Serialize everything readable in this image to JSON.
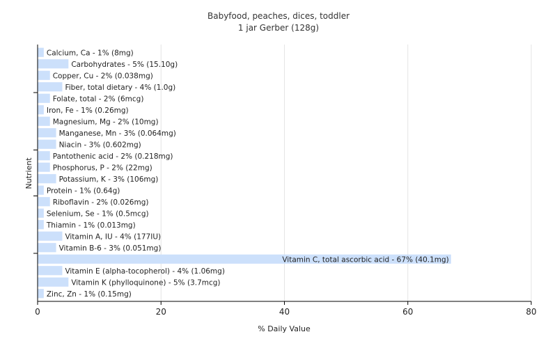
{
  "chart_data": {
    "type": "bar",
    "orientation": "horizontal",
    "title": "Babyfood, peaches, dices, toddler",
    "subtitle": "1 jar Gerber (128g)",
    "xlabel": "% Daily Value",
    "ylabel": "Nutrient",
    "xlim": [
      0,
      80
    ],
    "xticks": [
      0,
      20,
      40,
      60,
      80
    ],
    "grid": true,
    "bar_color": "#cce0fb",
    "categories": [
      "Calcium, Ca",
      "Carbohydrates",
      "Copper, Cu",
      "Fiber, total dietary",
      "Folate, total",
      "Iron, Fe",
      "Magnesium, Mg",
      "Manganese, Mn",
      "Niacin",
      "Pantothenic acid",
      "Phosphorus, P",
      "Potassium, K",
      "Protein",
      "Riboflavin",
      "Selenium, Se",
      "Thiamin",
      "Vitamin A, IU",
      "Vitamin B-6",
      "Vitamin C, total ascorbic acid",
      "Vitamin E (alpha-tocopherol)",
      "Vitamin K (phylloquinone)",
      "Zinc, Zn"
    ],
    "values": [
      1,
      5,
      2,
      4,
      2,
      1,
      2,
      3,
      3,
      2,
      2,
      3,
      1,
      2,
      1,
      1,
      4,
      3,
      67,
      4,
      5,
      1
    ],
    "labels": [
      "Calcium, Ca - 1% (8mg)",
      "Carbohydrates - 5% (15.10g)",
      "Copper, Cu - 2% (0.038mg)",
      "Fiber, total dietary - 4% (1.0g)",
      "Folate, total - 2% (6mcg)",
      "Iron, Fe - 1% (0.26mg)",
      "Magnesium, Mg - 2% (10mg)",
      "Manganese, Mn - 3% (0.064mg)",
      "Niacin - 3% (0.602mg)",
      "Pantothenic acid - 2% (0.218mg)",
      "Phosphorus, P - 2% (22mg)",
      "Potassium, K - 3% (106mg)",
      "Protein - 1% (0.64g)",
      "Riboflavin - 2% (0.026mg)",
      "Selenium, Se - 1% (0.5mcg)",
      "Thiamin - 1% (0.013mg)",
      "Vitamin A, IU - 4% (177IU)",
      "Vitamin B-6 - 3% (0.051mg)",
      "Vitamin C, total ascorbic acid - 67% (40.1mg)",
      "Vitamin E (alpha-tocopherol) - 4% (1.06mg)",
      "Vitamin K (phylloquinone) - 5% (3.7mcg)",
      "Zinc, Zn - 1% (0.15mg)"
    ]
  }
}
